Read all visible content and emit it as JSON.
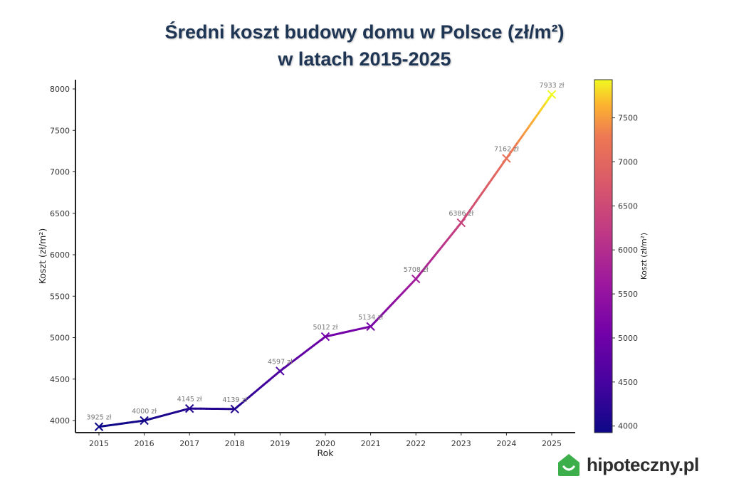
{
  "title": {
    "line1": "Średni koszt budowy domu w Polsce (zł/m²)",
    "line2": "w latach 2015-2025"
  },
  "chart_data": {
    "type": "line",
    "title": "Średni koszt budowy domu w Polsce (zł/m²) w latach 2015-2025",
    "xlabel": "Rok",
    "ylabel": "Koszt (zł/m²)",
    "categories": [
      "2015",
      "2016",
      "2017",
      "2018",
      "2019",
      "2020",
      "2021",
      "2022",
      "2023",
      "2024",
      "2025"
    ],
    "values": [
      3925,
      4000,
      4145,
      4139,
      4597,
      5012,
      5134,
      5708,
      6386,
      7162,
      7933
    ],
    "data_labels": [
      "3925 zł",
      "4000 zł",
      "4145 zł",
      "4139 zł",
      "4597 zł",
      "5012 zł",
      "5134 zł",
      "5708 zł",
      "6386 zł",
      "7162 zł",
      "7933 zł"
    ],
    "y_ticks": [
      4000,
      4500,
      5000,
      5500,
      6000,
      6500,
      7000,
      7500,
      8000
    ],
    "ylim": [
      3850,
      8100
    ],
    "grid": false,
    "marker": "x",
    "colormap": "plasma",
    "colorbar": {
      "label": "Koszt (zł/m²)",
      "ticks": [
        4000,
        4500,
        5000,
        5500,
        6000,
        6500,
        7000,
        7500
      ],
      "range": [
        3925,
        7933
      ],
      "position": "right"
    },
    "legend": null
  },
  "logo": {
    "text": "hipoteczny.pl",
    "color": "#3cae4a"
  }
}
